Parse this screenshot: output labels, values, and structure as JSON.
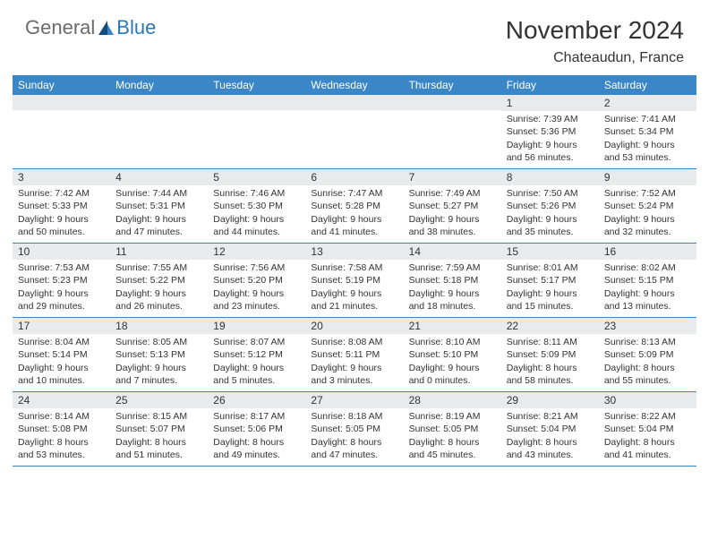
{
  "logo": {
    "text1": "General",
    "text2": "Blue"
  },
  "title": "November 2024",
  "location": "Chateaudun, France",
  "colors": {
    "header_bg": "#3b86c6",
    "header_text": "#ffffff",
    "daynum_bg": "#e9eaec",
    "border": "#3b86c6",
    "logo_gray": "#6b6b6b",
    "logo_blue": "#2a77b8",
    "text": "#333333",
    "page_bg": "#ffffff"
  },
  "weekdays": [
    "Sunday",
    "Monday",
    "Tuesday",
    "Wednesday",
    "Thursday",
    "Friday",
    "Saturday"
  ],
  "weeks": [
    [
      {
        "n": "",
        "sr": "",
        "ss": "",
        "dl": ""
      },
      {
        "n": "",
        "sr": "",
        "ss": "",
        "dl": ""
      },
      {
        "n": "",
        "sr": "",
        "ss": "",
        "dl": ""
      },
      {
        "n": "",
        "sr": "",
        "ss": "",
        "dl": ""
      },
      {
        "n": "",
        "sr": "",
        "ss": "",
        "dl": ""
      },
      {
        "n": "1",
        "sr": "Sunrise: 7:39 AM",
        "ss": "Sunset: 5:36 PM",
        "dl": "Daylight: 9 hours and 56 minutes."
      },
      {
        "n": "2",
        "sr": "Sunrise: 7:41 AM",
        "ss": "Sunset: 5:34 PM",
        "dl": "Daylight: 9 hours and 53 minutes."
      }
    ],
    [
      {
        "n": "3",
        "sr": "Sunrise: 7:42 AM",
        "ss": "Sunset: 5:33 PM",
        "dl": "Daylight: 9 hours and 50 minutes."
      },
      {
        "n": "4",
        "sr": "Sunrise: 7:44 AM",
        "ss": "Sunset: 5:31 PM",
        "dl": "Daylight: 9 hours and 47 minutes."
      },
      {
        "n": "5",
        "sr": "Sunrise: 7:46 AM",
        "ss": "Sunset: 5:30 PM",
        "dl": "Daylight: 9 hours and 44 minutes."
      },
      {
        "n": "6",
        "sr": "Sunrise: 7:47 AM",
        "ss": "Sunset: 5:28 PM",
        "dl": "Daylight: 9 hours and 41 minutes."
      },
      {
        "n": "7",
        "sr": "Sunrise: 7:49 AM",
        "ss": "Sunset: 5:27 PM",
        "dl": "Daylight: 9 hours and 38 minutes."
      },
      {
        "n": "8",
        "sr": "Sunrise: 7:50 AM",
        "ss": "Sunset: 5:26 PM",
        "dl": "Daylight: 9 hours and 35 minutes."
      },
      {
        "n": "9",
        "sr": "Sunrise: 7:52 AM",
        "ss": "Sunset: 5:24 PM",
        "dl": "Daylight: 9 hours and 32 minutes."
      }
    ],
    [
      {
        "n": "10",
        "sr": "Sunrise: 7:53 AM",
        "ss": "Sunset: 5:23 PM",
        "dl": "Daylight: 9 hours and 29 minutes."
      },
      {
        "n": "11",
        "sr": "Sunrise: 7:55 AM",
        "ss": "Sunset: 5:22 PM",
        "dl": "Daylight: 9 hours and 26 minutes."
      },
      {
        "n": "12",
        "sr": "Sunrise: 7:56 AM",
        "ss": "Sunset: 5:20 PM",
        "dl": "Daylight: 9 hours and 23 minutes."
      },
      {
        "n": "13",
        "sr": "Sunrise: 7:58 AM",
        "ss": "Sunset: 5:19 PM",
        "dl": "Daylight: 9 hours and 21 minutes."
      },
      {
        "n": "14",
        "sr": "Sunrise: 7:59 AM",
        "ss": "Sunset: 5:18 PM",
        "dl": "Daylight: 9 hours and 18 minutes."
      },
      {
        "n": "15",
        "sr": "Sunrise: 8:01 AM",
        "ss": "Sunset: 5:17 PM",
        "dl": "Daylight: 9 hours and 15 minutes."
      },
      {
        "n": "16",
        "sr": "Sunrise: 8:02 AM",
        "ss": "Sunset: 5:15 PM",
        "dl": "Daylight: 9 hours and 13 minutes."
      }
    ],
    [
      {
        "n": "17",
        "sr": "Sunrise: 8:04 AM",
        "ss": "Sunset: 5:14 PM",
        "dl": "Daylight: 9 hours and 10 minutes."
      },
      {
        "n": "18",
        "sr": "Sunrise: 8:05 AM",
        "ss": "Sunset: 5:13 PM",
        "dl": "Daylight: 9 hours and 7 minutes."
      },
      {
        "n": "19",
        "sr": "Sunrise: 8:07 AM",
        "ss": "Sunset: 5:12 PM",
        "dl": "Daylight: 9 hours and 5 minutes."
      },
      {
        "n": "20",
        "sr": "Sunrise: 8:08 AM",
        "ss": "Sunset: 5:11 PM",
        "dl": "Daylight: 9 hours and 3 minutes."
      },
      {
        "n": "21",
        "sr": "Sunrise: 8:10 AM",
        "ss": "Sunset: 5:10 PM",
        "dl": "Daylight: 9 hours and 0 minutes."
      },
      {
        "n": "22",
        "sr": "Sunrise: 8:11 AM",
        "ss": "Sunset: 5:09 PM",
        "dl": "Daylight: 8 hours and 58 minutes."
      },
      {
        "n": "23",
        "sr": "Sunrise: 8:13 AM",
        "ss": "Sunset: 5:09 PM",
        "dl": "Daylight: 8 hours and 55 minutes."
      }
    ],
    [
      {
        "n": "24",
        "sr": "Sunrise: 8:14 AM",
        "ss": "Sunset: 5:08 PM",
        "dl": "Daylight: 8 hours and 53 minutes."
      },
      {
        "n": "25",
        "sr": "Sunrise: 8:15 AM",
        "ss": "Sunset: 5:07 PM",
        "dl": "Daylight: 8 hours and 51 minutes."
      },
      {
        "n": "26",
        "sr": "Sunrise: 8:17 AM",
        "ss": "Sunset: 5:06 PM",
        "dl": "Daylight: 8 hours and 49 minutes."
      },
      {
        "n": "27",
        "sr": "Sunrise: 8:18 AM",
        "ss": "Sunset: 5:05 PM",
        "dl": "Daylight: 8 hours and 47 minutes."
      },
      {
        "n": "28",
        "sr": "Sunrise: 8:19 AM",
        "ss": "Sunset: 5:05 PM",
        "dl": "Daylight: 8 hours and 45 minutes."
      },
      {
        "n": "29",
        "sr": "Sunrise: 8:21 AM",
        "ss": "Sunset: 5:04 PM",
        "dl": "Daylight: 8 hours and 43 minutes."
      },
      {
        "n": "30",
        "sr": "Sunrise: 8:22 AM",
        "ss": "Sunset: 5:04 PM",
        "dl": "Daylight: 8 hours and 41 minutes."
      }
    ]
  ]
}
